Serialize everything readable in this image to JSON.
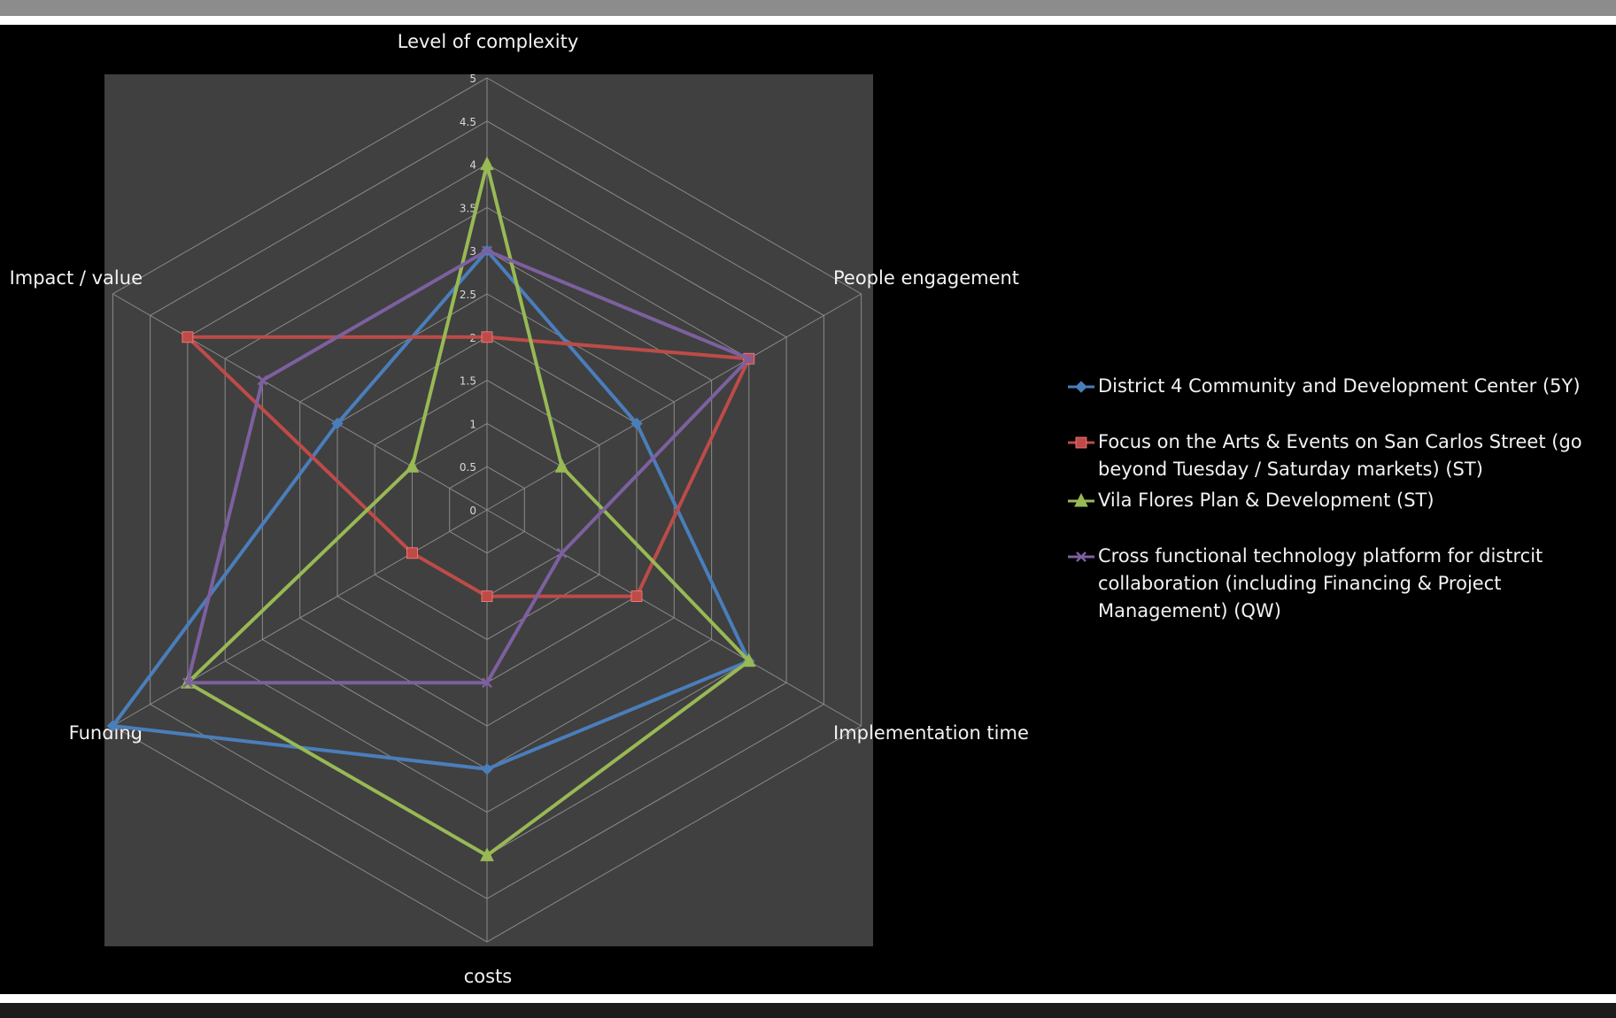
{
  "chart_data": {
    "type": "radar",
    "axes": [
      "Level of complexity",
      "People engagement",
      "Implementation time",
      "costs",
      "Funding",
      "Impact / value"
    ],
    "range": [
      0,
      5
    ],
    "ticks": [
      "0",
      "0.5",
      "1",
      "1.5",
      "2",
      "2.5",
      "3",
      "3.5",
      "4",
      "4.5",
      "5"
    ],
    "series": [
      {
        "name": "District 4 Community and Development Center (5Y)",
        "color": "#4a7ebb",
        "marker": "diamond",
        "values": [
          3,
          2,
          3.5,
          3,
          5,
          2
        ]
      },
      {
        "name": "Focus on the Arts & Events on San Carlos Street (go beyond Tuesday / Saturday markets) (ST)",
        "color": "#be4b48",
        "marker": "square",
        "values": [
          2,
          3.5,
          2,
          1,
          1,
          4
        ]
      },
      {
        "name": "Vila Flores Plan & Development (ST)",
        "color": "#98b954",
        "marker": "triangle",
        "values": [
          4,
          1,
          3.5,
          4,
          4,
          1
        ]
      },
      {
        "name": "Cross functional technology platform for distrcit collaboration (including Financing & Project Management) (QW)",
        "color": "#7d60a0",
        "marker": "x",
        "values": [
          3,
          3.5,
          1,
          2,
          4,
          3
        ]
      }
    ]
  }
}
